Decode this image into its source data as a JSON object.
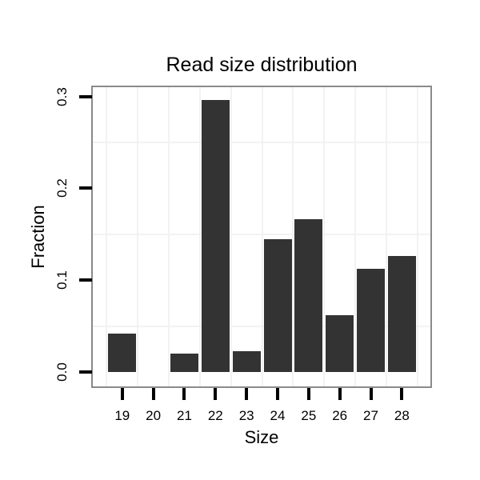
{
  "chart_data": {
    "type": "bar",
    "title": "Read size distribution",
    "xlabel": "Size",
    "ylabel": "Fraction",
    "categories": [
      "19",
      "20",
      "21",
      "22",
      "23",
      "24",
      "25",
      "26",
      "27",
      "28"
    ],
    "values": [
      0.042,
      0,
      0.02,
      0.296,
      0.023,
      0.145,
      0.166,
      0.062,
      0.112,
      0.126
    ],
    "ytick_values": [
      0,
      0.1,
      0.2,
      0.3
    ],
    "ytick_labels": [
      "0.0",
      "0.1",
      "0.2",
      "0.3"
    ],
    "minor_ytick_values": [
      0.05,
      0.15,
      0.25
    ],
    "ylim": [
      -0.016,
      0.31
    ],
    "grid": "minor-gridlines-only",
    "legend": "none",
    "bar_color": "#333333",
    "colors": {
      "panel_border": "#8a8a8a",
      "grid_minor": "#f2f2f2",
      "tick": "#000000",
      "text": "#000000",
      "background": "#ffffff"
    }
  }
}
